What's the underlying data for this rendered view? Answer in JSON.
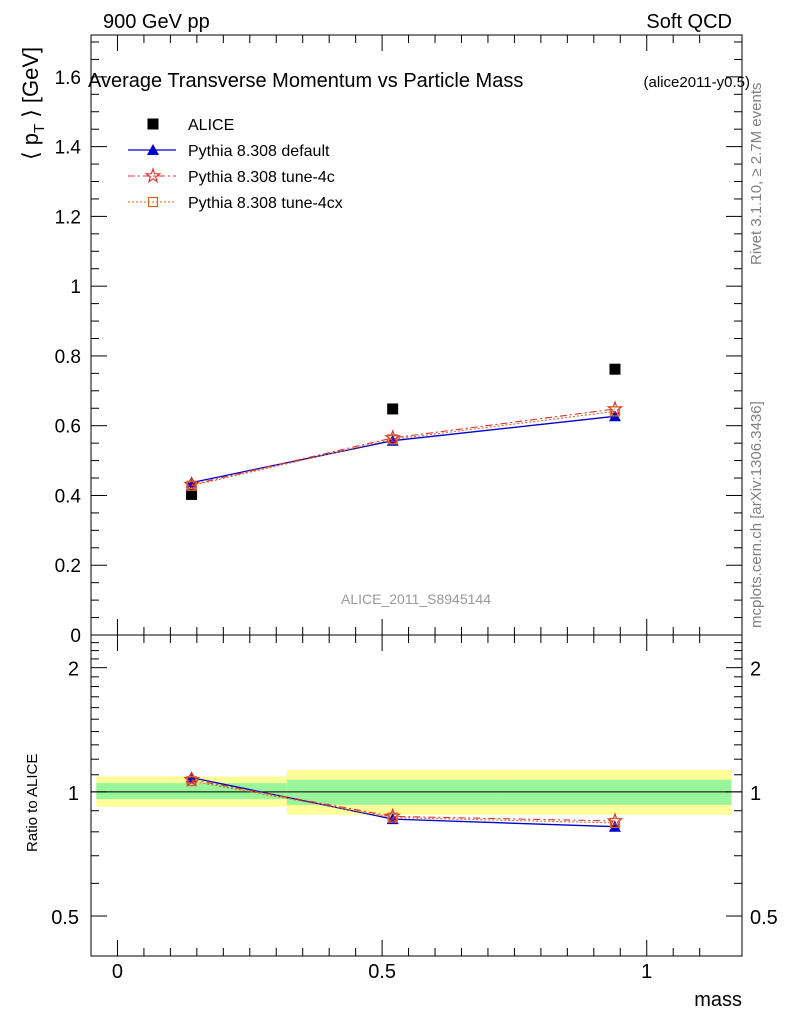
{
  "header": {
    "left": "900 GeV pp",
    "right": "Soft QCD"
  },
  "side_labels": {
    "rivet": "Rivet 3.1.10, ≥ 2.7M events",
    "mcplots": "mcplots.cern.ch [arXiv:1306.3436]"
  },
  "chart_data": [
    {
      "type": "scatter",
      "title": "Average Transverse Momentum vs Particle Mass",
      "subtitle": "(alice2011-y0.5)",
      "ylabel": "⟨ p_T ⟩ [GeV]",
      "xlabel": "",
      "watermark": "ALICE_2011_S8945144",
      "ylim": [
        0,
        1.72
      ],
      "xlim": [
        -0.05,
        1.18
      ],
      "y_ticks": [
        "0",
        "0.2",
        "0.4",
        "0.6",
        "0.8",
        "1",
        "1.2",
        "1.4",
        "1.6"
      ],
      "legend_position": "top-left",
      "x": [
        0.14,
        0.52,
        0.94
      ],
      "series": [
        {
          "name": "ALICE",
          "values": [
            0.403,
            0.648,
            0.762
          ],
          "color": "#000000",
          "marker": "square"
        },
        {
          "name": "Pythia 8.308 default",
          "values": [
            0.437,
            0.557,
            0.627
          ],
          "color": "#0000cc",
          "marker": "triangle"
        },
        {
          "name": "Pythia 8.308 tune-4c",
          "values": [
            0.431,
            0.565,
            0.648
          ],
          "color": "#e03030",
          "marker": "star"
        },
        {
          "name": "Pythia 8.308 tune-4cx",
          "values": [
            0.428,
            0.561,
            0.641
          ],
          "color": "#d06a2a",
          "marker": "open-square"
        }
      ]
    },
    {
      "type": "scatter",
      "ylabel": "Ratio to ALICE",
      "xlabel": "mass",
      "y_scale": "log",
      "ylim": [
        0.4,
        2.4
      ],
      "xlim": [
        -0.05,
        1.18
      ],
      "y_ticks": [
        "0.5",
        "1",
        "2"
      ],
      "x_ticks": [
        "0",
        "0.5",
        "1"
      ],
      "reference_line": 1,
      "bands": [
        {
          "x_range": [
            -0.04,
            0.32
          ],
          "inner": [
            0.96,
            1.05
          ],
          "outer": [
            0.92,
            1.09
          ]
        },
        {
          "x_range": [
            0.32,
            0.72
          ],
          "inner": [
            0.93,
            1.07
          ],
          "outer": [
            0.88,
            1.13
          ]
        },
        {
          "x_range": [
            0.72,
            1.16
          ],
          "inner": [
            0.93,
            1.07
          ],
          "outer": [
            0.88,
            1.13
          ]
        }
      ],
      "x": [
        0.14,
        0.52,
        0.94
      ],
      "series": [
        {
          "name": "Pythia 8.308 default",
          "values": [
            1.083,
            0.859,
            0.823
          ],
          "color": "#0000cc",
          "marker": "triangle"
        },
        {
          "name": "Pythia 8.308 tune-4c",
          "values": [
            1.07,
            0.872,
            0.85
          ],
          "color": "#e03030",
          "marker": "star"
        },
        {
          "name": "Pythia 8.308 tune-4cx",
          "values": [
            1.062,
            0.866,
            0.841
          ],
          "color": "#d06a2a",
          "marker": "open-square"
        }
      ]
    }
  ]
}
